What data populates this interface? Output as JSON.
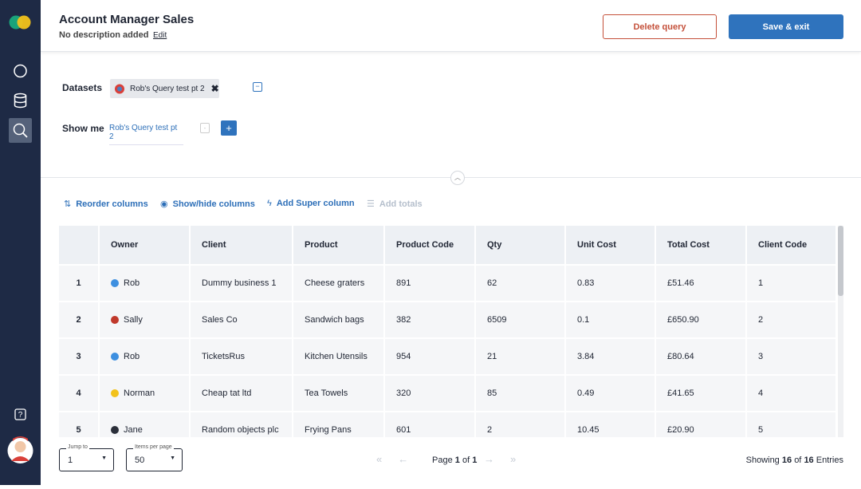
{
  "header": {
    "title": "Account Manager Sales",
    "description": "No description added",
    "edit": "Edit",
    "delete_button": "Delete query",
    "save_button": "Save & exit"
  },
  "query": {
    "datasets_label": "Datasets",
    "dataset_chip": "Rob's Query test pt 2",
    "show_me_label": "Show me",
    "show_me_value": "Rob's Query test pt 2"
  },
  "toolbar": [
    "Reorder columns",
    "Show/hide columns",
    "Add Super column",
    "Add totals"
  ],
  "table": {
    "columns": [
      "Owner",
      "Client",
      "Product",
      "Product Code",
      "Qty",
      "Unit Cost",
      "Total Cost",
      "Client Code"
    ],
    "rows": [
      [
        "1",
        "Rob",
        "Dummy business 1",
        "Cheese graters",
        "891",
        "62",
        "0.83",
        "£51.46",
        "1"
      ],
      [
        "2",
        "Sally",
        "Sales Co",
        "Sandwich bags",
        "382",
        "6509",
        "0.1",
        "£650.90",
        "2"
      ],
      [
        "3",
        "Rob",
        "TicketsRus",
        "Kitchen Utensils",
        "954",
        "21",
        "3.84",
        "£80.64",
        "3"
      ],
      [
        "4",
        "Norman",
        "Cheap tat ltd",
        "Tea Towels",
        "320",
        "85",
        "0.49",
        "£41.65",
        "4"
      ],
      [
        "5",
        "Jane",
        "Random objects plc",
        "Frying Pans",
        "601",
        "2",
        "10.45",
        "£20.90",
        "5"
      ]
    ],
    "owner_colors": [
      "#3d8fe0",
      "#c0392b",
      "#3d8fe0",
      "#f2c21b",
      "#2b2f3a"
    ]
  },
  "footer": {
    "jump_to_label": "Jump to",
    "jump_to_value": "1",
    "items_per_page_label": "Items per page",
    "items_per_page_value": "50",
    "page_word": "Page",
    "page_current": "1",
    "page_of": "of",
    "page_total": "1",
    "showing_word": "Showing",
    "showing_count": "16",
    "showing_of": "of",
    "showing_total": "16",
    "entries_word": "Entries"
  }
}
